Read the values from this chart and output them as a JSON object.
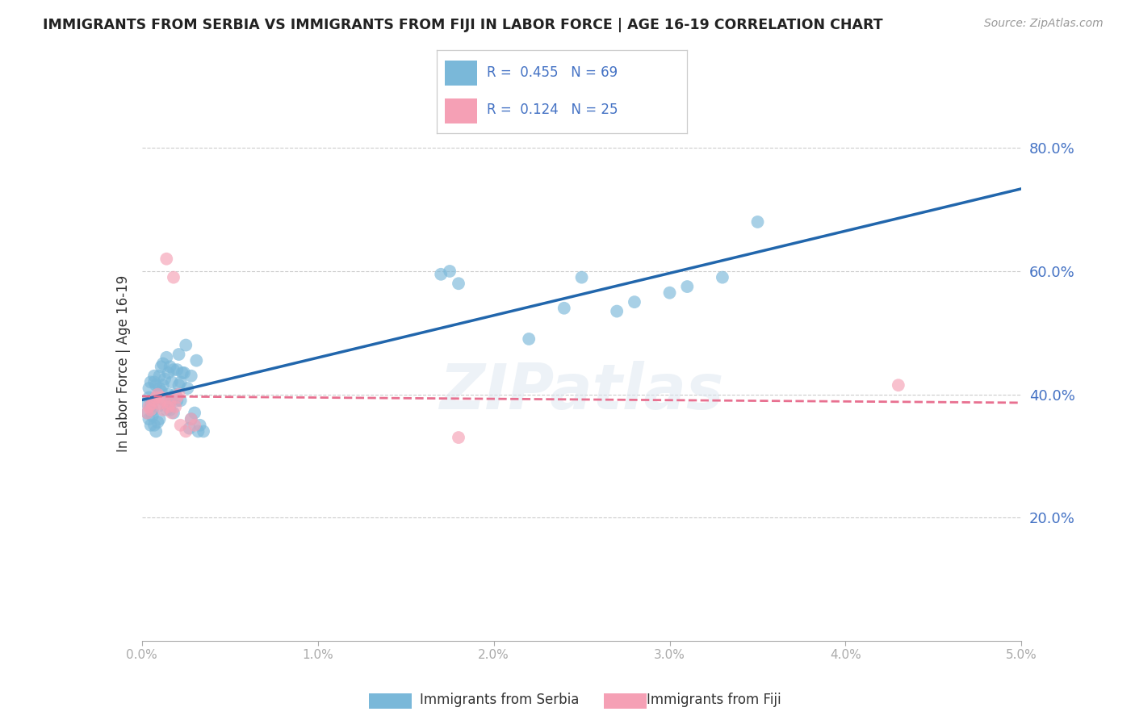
{
  "title": "IMMIGRANTS FROM SERBIA VS IMMIGRANTS FROM FIJI IN LABOR FORCE | AGE 16-19 CORRELATION CHART",
  "source": "Source: ZipAtlas.com",
  "ylabel": "In Labor Force | Age 16-19",
  "xlim": [
    0.0,
    0.05
  ],
  "ylim": [
    0.0,
    0.9
  ],
  "xticks": [
    0.0,
    0.01,
    0.02,
    0.03,
    0.04,
    0.05
  ],
  "xtick_labels": [
    "0.0%",
    "1.0%",
    "2.0%",
    "3.0%",
    "4.0%",
    "5.0%"
  ],
  "yticks_right": [
    0.2,
    0.4,
    0.6,
    0.8
  ],
  "ytick_right_labels": [
    "20.0%",
    "40.0%",
    "60.0%",
    "80.0%"
  ],
  "grid_color": "#cccccc",
  "serbia_color": "#7ab8d9",
  "fiji_color": "#f5a0b5",
  "serbia_line_color": "#2166ac",
  "fiji_line_color": "#e87090",
  "serbia_R": 0.455,
  "serbia_N": 69,
  "fiji_R": 0.124,
  "fiji_N": 25,
  "watermark": "ZIPatlas",
  "legend_label_serbia": "Immigrants from Serbia",
  "legend_label_fiji": "Immigrants from Fiji",
  "serbia_x": [
    0.0003,
    0.0003,
    0.0004,
    0.0004,
    0.0004,
    0.0005,
    0.0005,
    0.0005,
    0.0006,
    0.0006,
    0.0006,
    0.0007,
    0.0007,
    0.0007,
    0.0008,
    0.0008,
    0.0008,
    0.0009,
    0.0009,
    0.001,
    0.001,
    0.001,
    0.0011,
    0.0011,
    0.0012,
    0.0012,
    0.0013,
    0.0013,
    0.0014,
    0.0014,
    0.0015,
    0.0015,
    0.0016,
    0.0016,
    0.0017,
    0.0017,
    0.0018,
    0.0018,
    0.0019,
    0.002,
    0.002,
    0.0021,
    0.0021,
    0.0022,
    0.0022,
    0.0023,
    0.0024,
    0.0025,
    0.0026,
    0.0027,
    0.0028,
    0.0028,
    0.003,
    0.0031,
    0.0032,
    0.0033,
    0.0035,
    0.017,
    0.0175,
    0.018,
    0.022,
    0.024,
    0.025,
    0.027,
    0.028,
    0.03,
    0.031,
    0.033,
    0.035
  ],
  "serbia_y": [
    0.385,
    0.37,
    0.36,
    0.395,
    0.41,
    0.38,
    0.35,
    0.42,
    0.365,
    0.39,
    0.375,
    0.35,
    0.42,
    0.43,
    0.34,
    0.415,
    0.395,
    0.355,
    0.38,
    0.36,
    0.43,
    0.41,
    0.405,
    0.445,
    0.415,
    0.45,
    0.39,
    0.425,
    0.375,
    0.46,
    0.4,
    0.435,
    0.375,
    0.445,
    0.39,
    0.42,
    0.37,
    0.44,
    0.4,
    0.44,
    0.39,
    0.415,
    0.465,
    0.42,
    0.39,
    0.435,
    0.435,
    0.48,
    0.41,
    0.345,
    0.36,
    0.43,
    0.37,
    0.455,
    0.34,
    0.35,
    0.34,
    0.595,
    0.6,
    0.58,
    0.49,
    0.54,
    0.59,
    0.535,
    0.55,
    0.565,
    0.575,
    0.59,
    0.68
  ],
  "fiji_x": [
    0.0003,
    0.0004,
    0.0005,
    0.0006,
    0.0007,
    0.0008,
    0.0009,
    0.001,
    0.0011,
    0.0012,
    0.0013,
    0.0014,
    0.0015,
    0.0016,
    0.0017,
    0.0018,
    0.0019,
    0.002,
    0.0021,
    0.0022,
    0.0025,
    0.0028,
    0.003,
    0.018,
    0.043
  ],
  "fiji_y": [
    0.37,
    0.38,
    0.375,
    0.385,
    0.39,
    0.395,
    0.4,
    0.385,
    0.395,
    0.375,
    0.39,
    0.62,
    0.38,
    0.385,
    0.37,
    0.59,
    0.38,
    0.395,
    0.4,
    0.35,
    0.34,
    0.36,
    0.35,
    0.33,
    0.415
  ]
}
